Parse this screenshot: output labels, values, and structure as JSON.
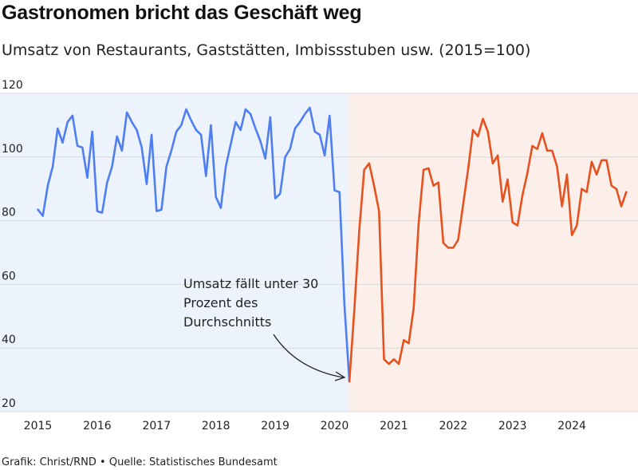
{
  "header": {
    "title": "Gastronomen bricht das Geschäft weg",
    "subtitle": "Umsatz von Restaurants, Gaststätten, Imbissstuben usw. (2015=100)"
  },
  "footer": {
    "source": "Grafik: Christ/RND • Quelle: Statistisches Bundesamt"
  },
  "annotation": {
    "lines": [
      "Umsatz fällt unter 30",
      "Prozent des",
      "Durchschnitts"
    ]
  },
  "colors": {
    "pre_line": "#4f7ef0",
    "post_line": "#e5521f",
    "pre_bg": "#edf3fc",
    "post_bg": "#fcefea",
    "grid": "#d8d8d8"
  },
  "chart_data": {
    "type": "line",
    "title": "Gastronomen bricht das Geschäft weg",
    "subtitle": "Umsatz von Restaurants, Gaststätten, Imbissstuben usw. (2015=100)",
    "xlabel": "",
    "ylabel": "",
    "ylim": [
      20,
      120
    ],
    "yticks": [
      20,
      40,
      60,
      80,
      100,
      120
    ],
    "xticks": [
      "2015",
      "2016",
      "2017",
      "2018",
      "2019",
      "2020",
      "2021",
      "2022",
      "2023",
      "2024"
    ],
    "grid": true,
    "x_start": "2015-01",
    "frequency": "monthly",
    "series": [
      {
        "name": "",
        "period": "2015-01 to 2020-04",
        "values": [
          83.5,
          81.5,
          91,
          97,
          109,
          104.5,
          111,
          113,
          103.5,
          103,
          93.5,
          108,
          83,
          82.5,
          92,
          97,
          106.5,
          102,
          114,
          111,
          108.5,
          103,
          91.5,
          107,
          83,
          83.5,
          97,
          102,
          108,
          110,
          115,
          111.5,
          108.5,
          107,
          94,
          110,
          87.5,
          84,
          97,
          104,
          111,
          108.5,
          115,
          113.5,
          109,
          105,
          99.5,
          112.5,
          87,
          88.5,
          100,
          102.5,
          109,
          111,
          113.5,
          115.5,
          108,
          107,
          100.5,
          113,
          89.5,
          89,
          53.5,
          29.5
        ]
      },
      {
        "name": "",
        "period": "2020-04 to 2024-12",
        "values": [
          29.5,
          52,
          77,
          96,
          98,
          91,
          83,
          36.5,
          35,
          36.5,
          35,
          42.5,
          41.5,
          52.5,
          79,
          96,
          96.5,
          91,
          92,
          73,
          71.5,
          71.5,
          74,
          85,
          96,
          108.5,
          106.5,
          112,
          108,
          98,
          100.5,
          86,
          93,
          79.5,
          78.5,
          88,
          95,
          103.5,
          102.5,
          107.5,
          102,
          102,
          97,
          84.5,
          94.5,
          75.5,
          78.5,
          90,
          89,
          98.5,
          94.5,
          99,
          99,
          91,
          90,
          84.5,
          89
        ]
      }
    ]
  }
}
